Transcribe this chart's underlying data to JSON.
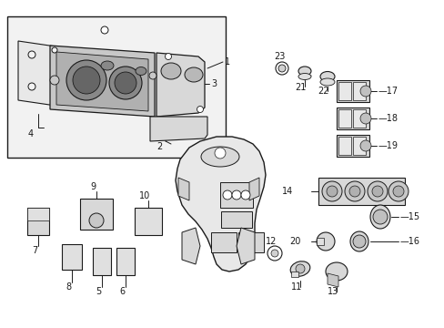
{
  "bg_color": "#ffffff",
  "line_color": "#1a1a1a",
  "gray_fill": "#d0d0d0",
  "light_fill": "#e8e8e8",
  "inset_fill": "#e0e0e0",
  "fig_width": 4.89,
  "fig_height": 3.6,
  "dpi": 100
}
